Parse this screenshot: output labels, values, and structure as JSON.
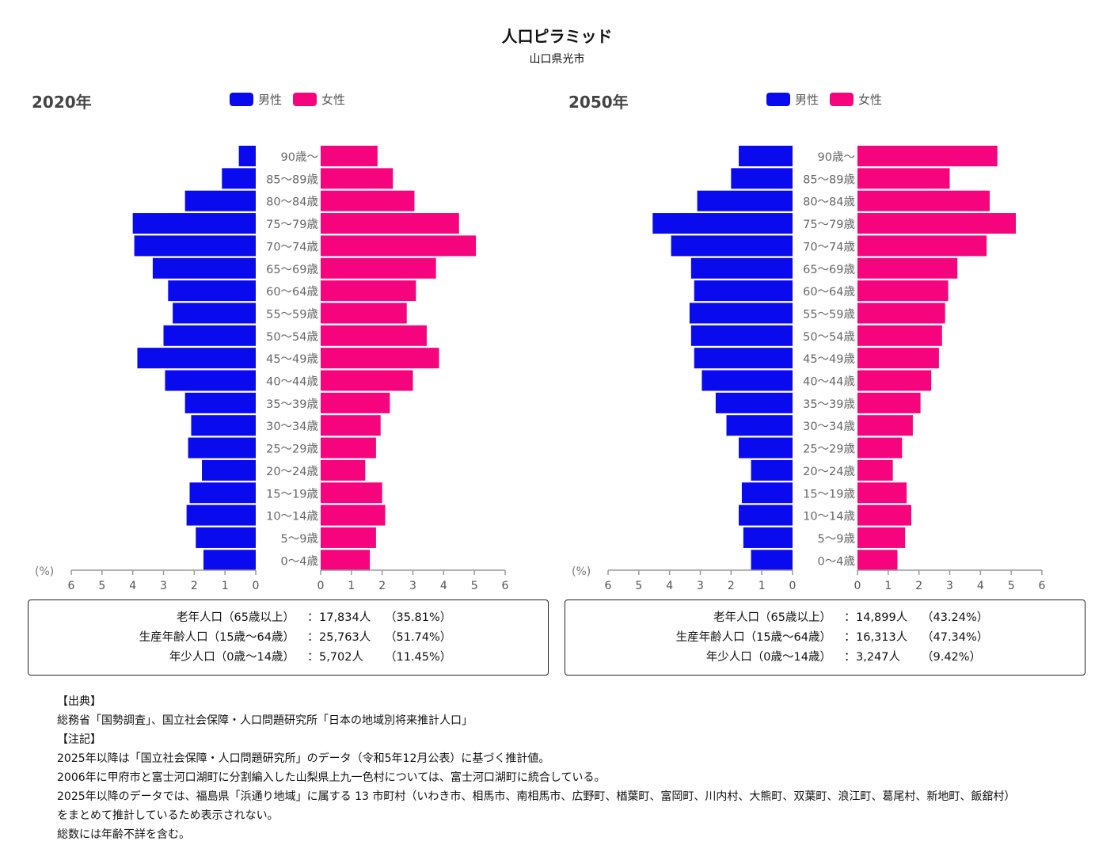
{
  "title": "人口ピラミッド",
  "subtitle": "山口県光市",
  "legend": {
    "male": "男性",
    "female": "女性"
  },
  "colors": {
    "male": "#0a0aee",
    "female": "#f5047e",
    "axis": "#999999"
  },
  "axis_unit": "(%)",
  "age_groups": [
    "90歳〜",
    "85〜89歳",
    "80〜84歳",
    "75〜79歳",
    "70〜74歳",
    "65〜69歳",
    "60〜64歳",
    "55〜59歳",
    "50〜54歳",
    "45〜49歳",
    "40〜44歳",
    "35〜39歳",
    "30〜34歳",
    "25〜29歳",
    "20〜24歳",
    "15〜19歳",
    "10〜14歳",
    "5〜9歳",
    "0〜4歳"
  ],
  "ticks": [
    "6",
    "5",
    "4",
    "3",
    "2",
    "1",
    "0"
  ],
  "ticks_right": [
    "0",
    "1",
    "2",
    "3",
    "4",
    "5",
    "6"
  ],
  "chart_data": [
    {
      "type": "bar",
      "title": "2020年",
      "categories": [
        "90歳〜",
        "85〜89歳",
        "80〜84歳",
        "75〜79歳",
        "70〜74歳",
        "65〜69歳",
        "60〜64歳",
        "55〜59歳",
        "50〜54歳",
        "45〜49歳",
        "40〜44歳",
        "35〜39歳",
        "30〜34歳",
        "25〜29歳",
        "20〜24歳",
        "15〜19歳",
        "10〜14歳",
        "5〜9歳",
        "0〜4歳"
      ],
      "xlim": [
        0,
        6
      ],
      "xlabel": "(%)",
      "series": [
        {
          "name": "男性",
          "values": [
            0.55,
            1.1,
            2.3,
            4.0,
            3.95,
            3.35,
            2.85,
            2.7,
            3.0,
            3.85,
            2.95,
            2.3,
            2.1,
            2.2,
            1.75,
            2.15,
            2.25,
            1.95,
            1.7
          ]
        },
        {
          "name": "女性",
          "values": [
            1.85,
            2.35,
            3.05,
            4.5,
            5.05,
            3.75,
            3.1,
            2.8,
            3.45,
            3.85,
            3.0,
            2.25,
            1.95,
            1.8,
            1.45,
            2.0,
            2.1,
            1.8,
            1.6
          ]
        }
      ]
    },
    {
      "type": "bar",
      "title": "2050年",
      "categories": [
        "90歳〜",
        "85〜89歳",
        "80〜84歳",
        "75〜79歳",
        "70〜74歳",
        "65〜69歳",
        "60〜64歳",
        "55〜59歳",
        "50〜54歳",
        "45〜49歳",
        "40〜44歳",
        "35〜39歳",
        "30〜34歳",
        "25〜29歳",
        "20〜24歳",
        "15〜19歳",
        "10〜14歳",
        "5〜9歳",
        "0〜4歳"
      ],
      "xlim": [
        0,
        6
      ],
      "xlabel": "(%)",
      "series": [
        {
          "name": "男性",
          "values": [
            1.75,
            2.0,
            3.1,
            4.55,
            3.95,
            3.3,
            3.2,
            3.35,
            3.3,
            3.2,
            2.95,
            2.5,
            2.15,
            1.75,
            1.35,
            1.65,
            1.75,
            1.6,
            1.35
          ]
        },
        {
          "name": "女性",
          "values": [
            4.55,
            3.0,
            4.3,
            5.15,
            4.2,
            3.25,
            2.95,
            2.85,
            2.75,
            2.65,
            2.4,
            2.05,
            1.8,
            1.45,
            1.15,
            1.6,
            1.75,
            1.55,
            1.3
          ]
        }
      ]
    }
  ],
  "summary": [
    {
      "rows": [
        {
          "label": "老年人口（65歳以上）",
          "colon": "：",
          "count": "17,834人",
          "pct": "（35.81%）"
        },
        {
          "label": "生産年齢人口（15歳〜64歳）",
          "colon": "：",
          "count": "25,763人",
          "pct": "（51.74%）"
        },
        {
          "label": "年少人口（0歳〜14歳）",
          "colon": "：",
          "count": "5,702人",
          "pct": "（11.45%）"
        }
      ]
    },
    {
      "rows": [
        {
          "label": "老年人口（65歳以上）",
          "colon": "：",
          "count": "14,899人",
          "pct": "（43.24%）"
        },
        {
          "label": "生産年齢人口（15歳〜64歳）",
          "colon": "：",
          "count": "16,313人",
          "pct": "（47.34%）"
        },
        {
          "label": "年少人口（0歳〜14歳）",
          "colon": "：",
          "count": "3,247人",
          "pct": "（9.42%）"
        }
      ]
    }
  ],
  "notes": [
    "【出典】",
    "総務省「国勢調査」、国立社会保障・人口問題研究所「日本の地域別将来推計人口」",
    "【注記】",
    "2025年以降は「国立社会保障・人口問題研究所」のデータ（令和5年12月公表）に基づく推計値。",
    "2006年に甲府市と富士河口湖町に分割編入した山梨県上九一色村については、富士河口湖町に統合している。",
    "2025年以降のデータでは、福島県「浜通り地域」に属する 13 市町村（いわき市、相馬市、南相馬市、広野町、楢葉町、富岡町、川内村、大熊町、双葉町、浪江町、葛尾村、新地町、飯舘村）",
    "をまとめて推計しているため表示されない。",
    "総数には年齢不詳を含む。"
  ]
}
